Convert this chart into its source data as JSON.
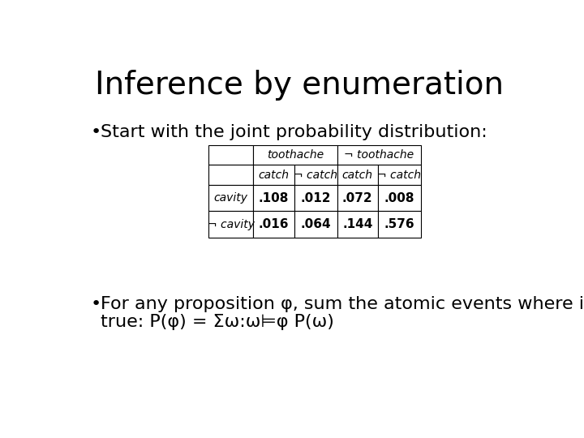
{
  "title": "Inference by enumeration",
  "title_fontsize": 28,
  "bg_color": "#ffffff",
  "bullet1": "Start with the joint probability distribution:",
  "bullet2_line1": "For any proposition φ, sum the atomic events where it is",
  "bullet2_line2": "true: P(φ) = Σω:ω⊨φ P(ω)",
  "bullet_fontsize": 16,
  "table": {
    "row1_label": "cavity",
    "row2_label": "¬ cavity",
    "data": [
      [
        ".108",
        ".012",
        ".072",
        ".008"
      ],
      [
        ".016",
        ".064",
        ".144",
        ".576"
      ]
    ]
  }
}
